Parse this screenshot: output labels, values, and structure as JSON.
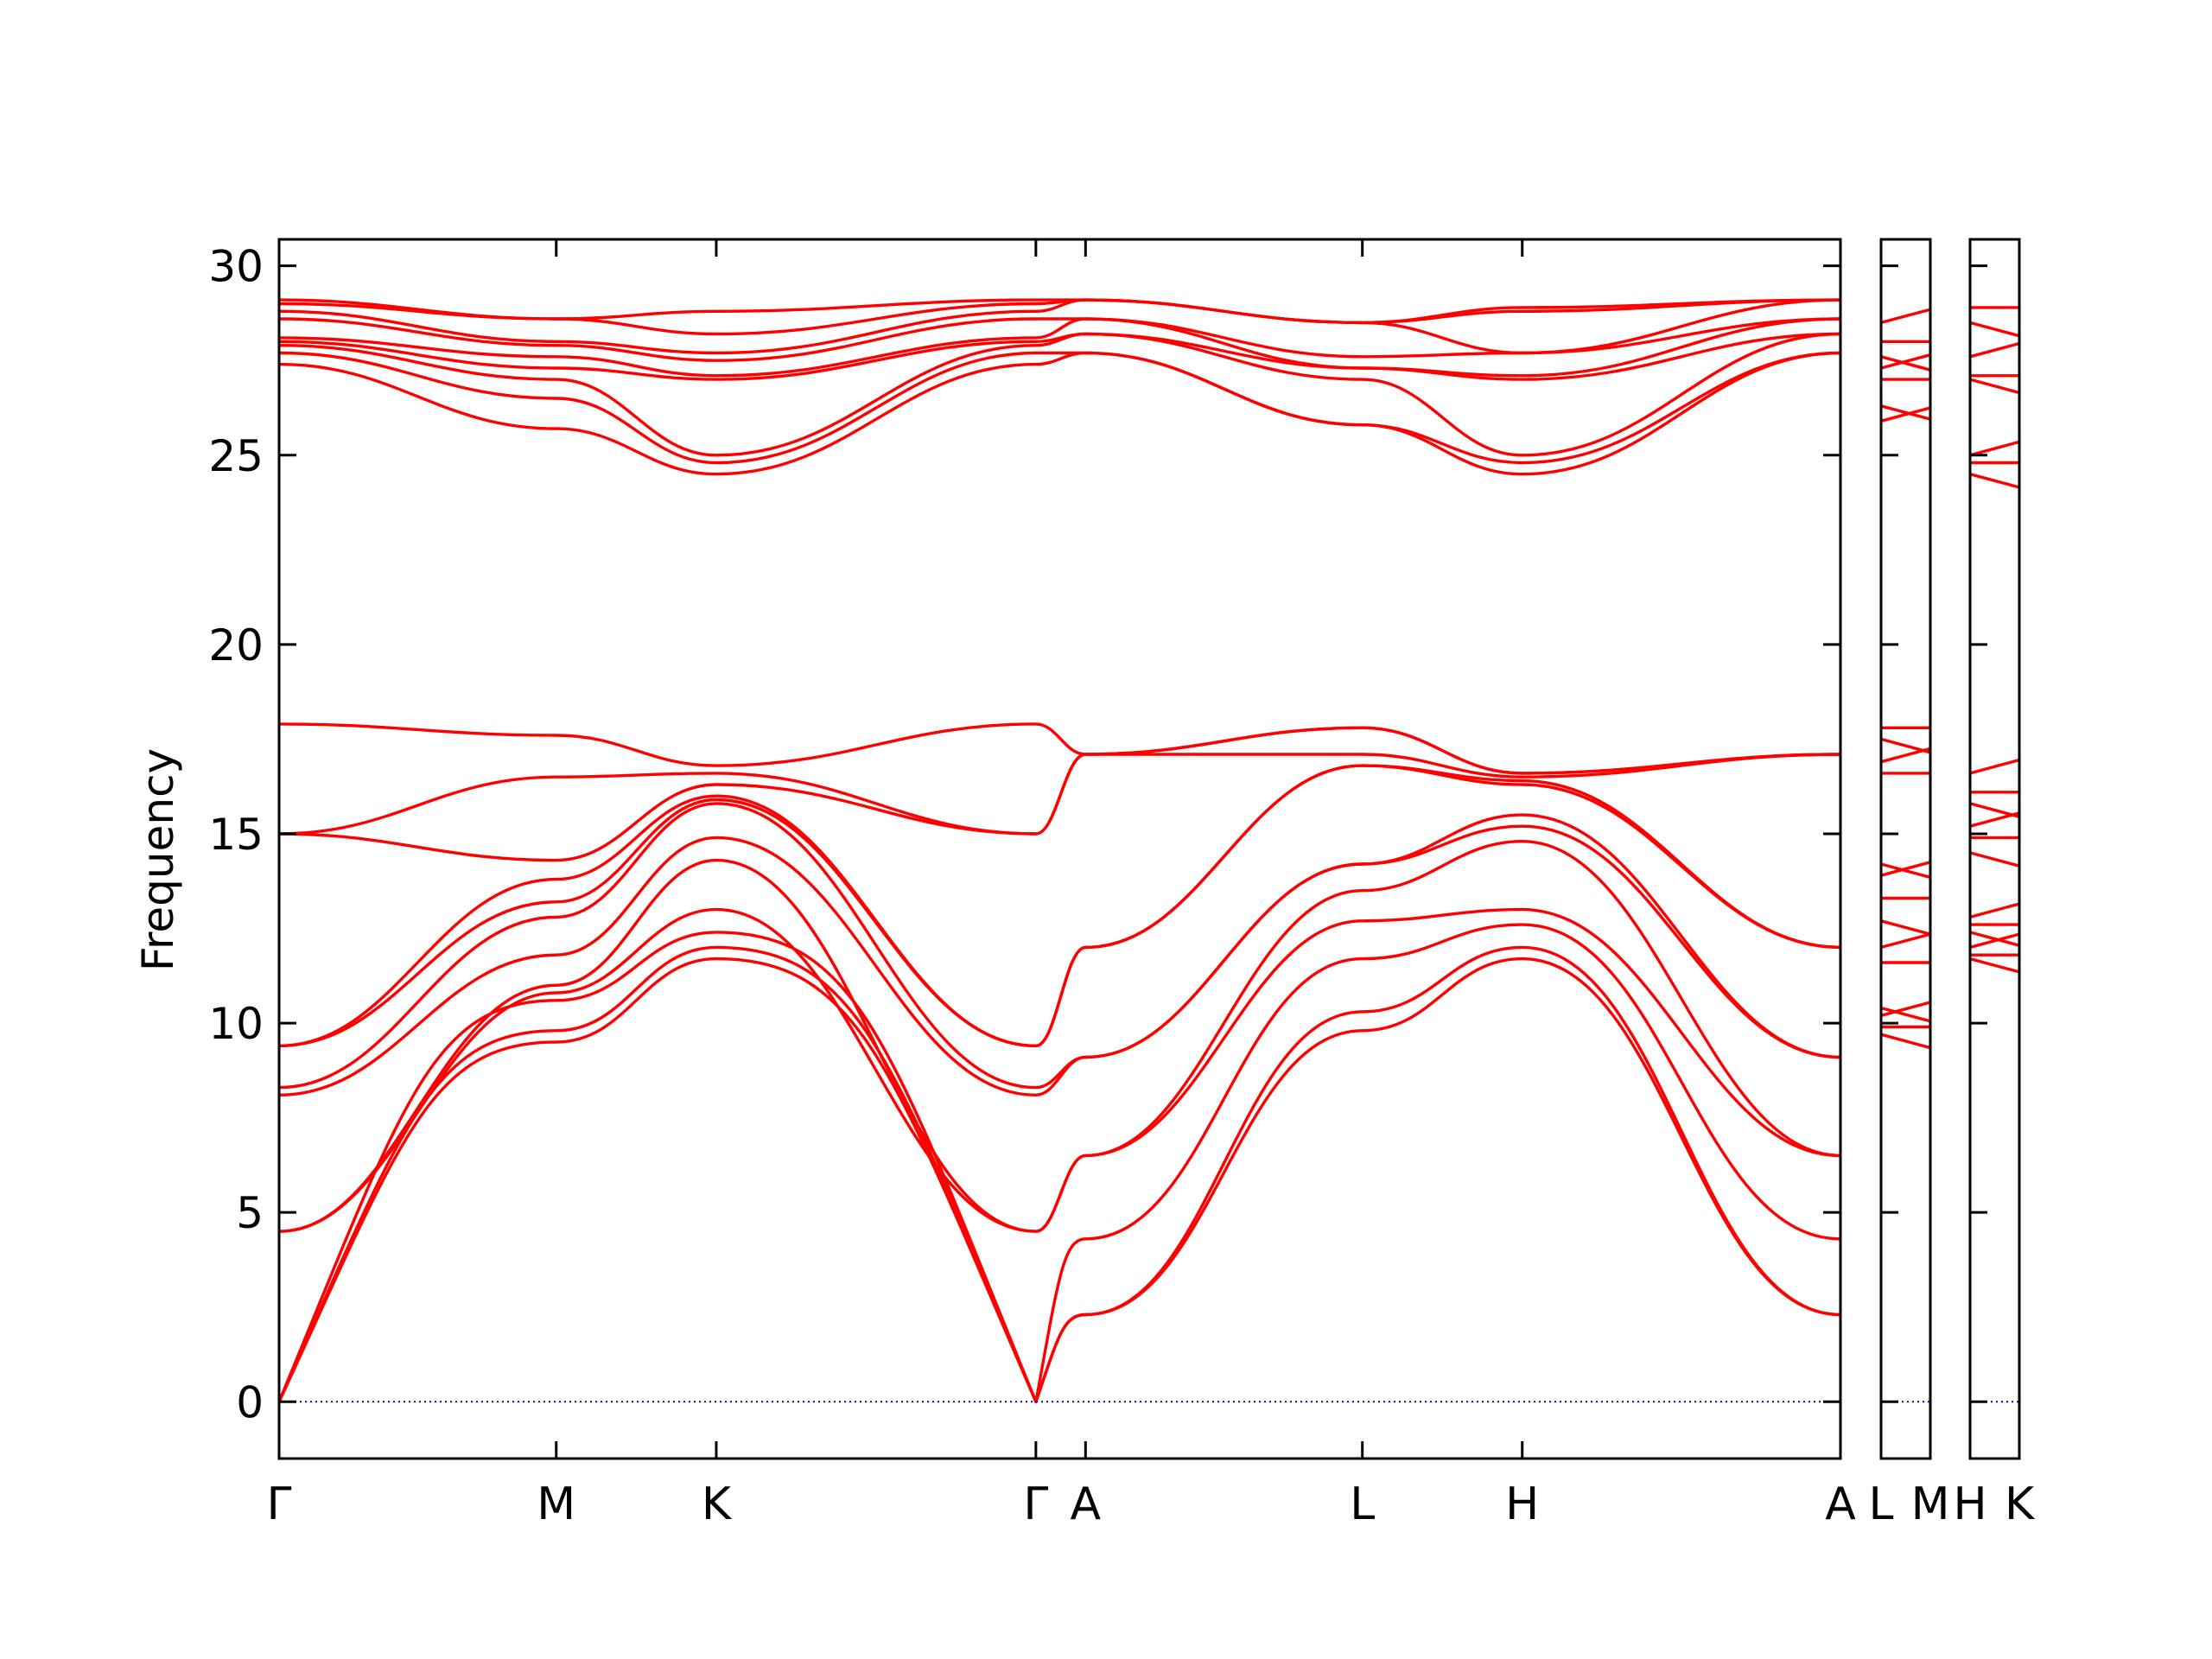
{
  "chart_data": {
    "type": "line",
    "title": "",
    "ylabel": "Frequency",
    "xlabel": "",
    "ylim": [
      -1.5,
      30.7
    ],
    "yticks": [
      "0",
      "5",
      "10",
      "15",
      "20",
      "25",
      "30"
    ],
    "ytick_values": [
      0,
      5,
      10,
      15,
      20,
      25,
      30
    ],
    "line_color": "#ff0000",
    "zero_line_color": "#0000cc",
    "grid": false,
    "panels": [
      {
        "labels": [
          "Γ",
          "M",
          "K",
          "Γ",
          "A",
          "L",
          "H",
          "A"
        ],
        "label_positions": [
          0,
          0.1775,
          0.28,
          0.4847,
          0.5165,
          0.6938,
          0.7962,
          1.0
        ],
        "band_groups": {
          "acoustic_at_gamma": [
            0,
            0,
            0
          ],
          "low_optic_at_gamma": [
            4.5,
            4.5,
            8.1,
            8.3,
            9.4,
            9.4
          ],
          "mid_optic_at_gamma": [
            15.0,
            15.0,
            17.9
          ],
          "high_optic_at_gamma": [
            27.4,
            27.7,
            27.9,
            28.0,
            28.1,
            28.6,
            28.8,
            29.0,
            29.1
          ],
          "at_M": [
            9.5,
            9.8,
            10.6,
            10.8,
            11.0,
            11.8,
            12.8,
            13.2,
            13.8,
            14.3,
            16.5,
            17.4,
            17.6,
            25.7,
            26.5,
            27.3,
            27.6,
            28.0,
            28.6
          ],
          "at_K": [
            11.7,
            12.0,
            12.4,
            13.0,
            14.3,
            14.9,
            15.8,
            16.3,
            16.6,
            24.5,
            24.8,
            25.0,
            27.0,
            27.5,
            28.2,
            28.8
          ],
          "at_A": [
            2.3,
            2.3,
            4.3,
            6.5,
            6.5,
            9.1,
            9.1,
            12.0,
            17.1,
            27.7,
            28.2,
            28.6,
            29.1
          ],
          "at_L": [
            9.8,
            10.3,
            11.7,
            12.7,
            13.5,
            14.2,
            16.8,
            17.1,
            17.8,
            25.8,
            27.0,
            27.3,
            27.6,
            28.5
          ],
          "at_H": [
            11.7,
            12.0,
            12.6,
            13.0,
            14.8,
            15.2,
            15.5,
            16.3,
            16.6,
            24.5,
            24.8,
            25.0,
            27.0,
            27.7,
            28.9
          ]
        }
      },
      {
        "labels": [
          "L",
          "M"
        ],
        "label_positions": [
          0,
          1.0
        ],
        "bands": [
          9.7,
          9.9,
          10.2,
          10.4,
          11.6,
          12.0,
          12.7,
          13.3,
          13.9,
          14.2,
          16.6,
          16.9,
          17.5,
          17.8,
          25.9,
          26.3,
          27.0,
          27.3,
          27.6,
          28.0,
          28.5
        ]
      },
      {
        "labels": [
          "H",
          "K"
        ],
        "label_positions": [
          0,
          1.0
        ],
        "bands": [
          11.7,
          11.8,
          12.0,
          12.4,
          12.6,
          12.8,
          14.5,
          14.9,
          15.2,
          15.8,
          16.1,
          16.6,
          24.5,
          24.8,
          25.0,
          27.0,
          27.1,
          27.6,
          28.5,
          28.9
        ]
      }
    ]
  },
  "x_tick_labels": {
    "main": [
      "Γ",
      "M",
      "K",
      "Γ",
      "A",
      "L",
      "H",
      "A"
    ],
    "panel2": [
      "L",
      "M"
    ],
    "panel3": [
      "H",
      "K"
    ]
  }
}
